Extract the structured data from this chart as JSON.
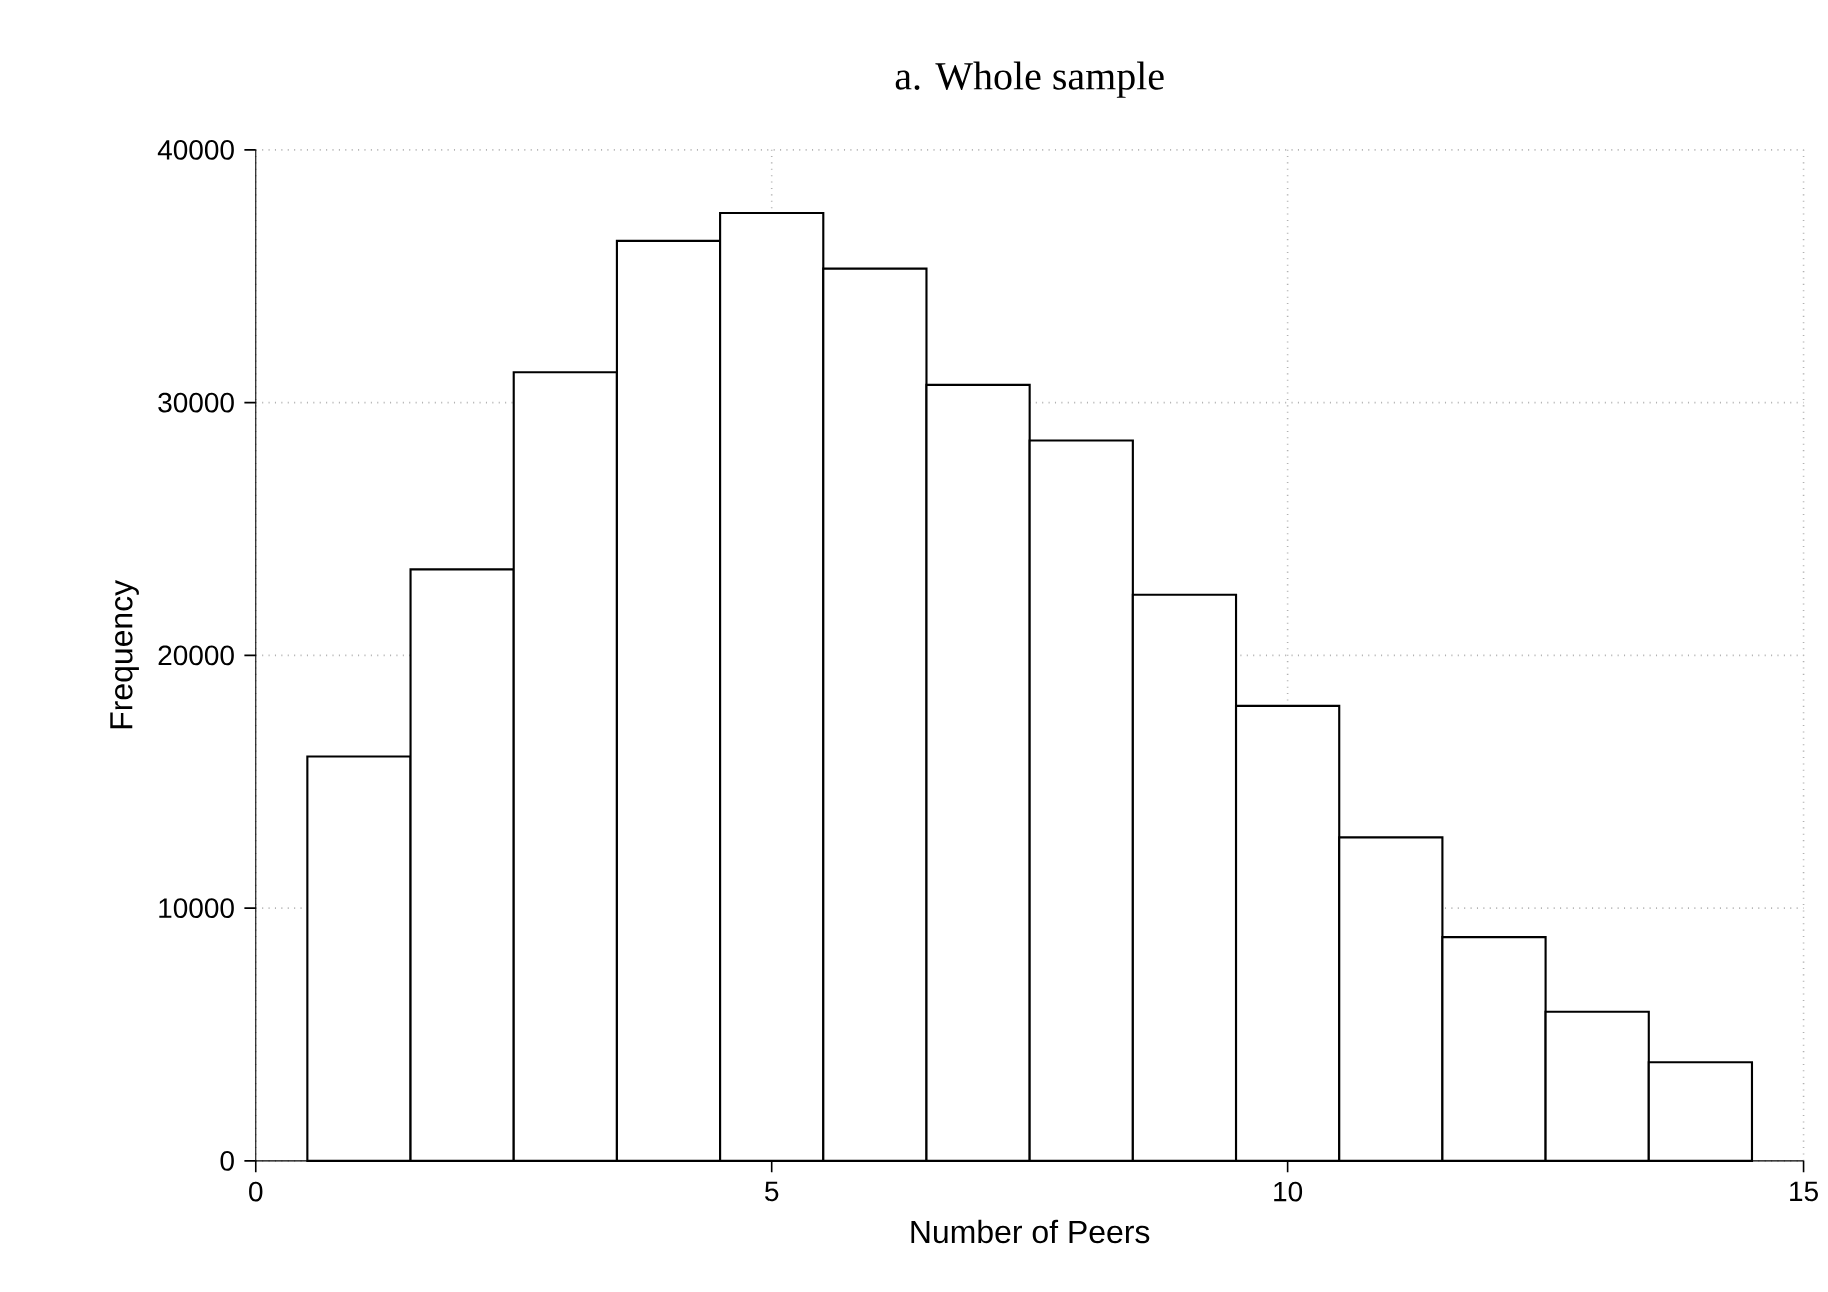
{
  "chart_data": {
    "type": "histogram",
    "title": "a. Whole sample",
    "xlabel": "Number of Peers",
    "ylabel": "Frequency",
    "bins": [
      0.5,
      1.5,
      2.5,
      3.5,
      4.5,
      5.5,
      6.5,
      7.5,
      8.5,
      9.5,
      10.5,
      11.5,
      12.5,
      13.5,
      14.5
    ],
    "values": [
      16000,
      23400,
      31200,
      36400,
      37500,
      35300,
      30700,
      28500,
      22400,
      18000,
      12800,
      8850,
      5900,
      3900
    ],
    "color": "#ffffff",
    "xlim": [
      0,
      15
    ],
    "ylim": [
      0,
      40000
    ],
    "xticks": [
      0,
      5,
      10,
      15
    ],
    "yticks": [
      0,
      10000,
      20000,
      30000,
      40000
    ],
    "grid": true
  }
}
